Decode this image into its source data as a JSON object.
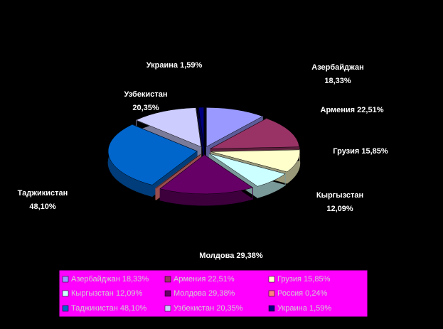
{
  "chart_data": {
    "type": "pie",
    "categories": [
      "Азербайджан",
      "Армения",
      "Грузия",
      "Кыргызстан",
      "Молдова",
      "Россия",
      "Таджикистан",
      "Узбекистан",
      "Украина"
    ],
    "values": [
      18.33,
      22.51,
      15.85,
      12.09,
      29.38,
      0.24,
      48.1,
      20.35,
      1.59
    ],
    "value_labels": [
      "18,33%",
      "22,51%",
      "15,85%",
      "12,09%",
      "29,38%",
      "0,24%",
      "48,10%",
      "20,35%",
      "1,59%"
    ],
    "colors": [
      "#9999ff",
      "#993366",
      "#ffffcc",
      "#ccffff",
      "#660066",
      "#ff8080",
      "#0066cc",
      "#ccccff",
      "#000080"
    ],
    "legend": "bottom"
  }
}
